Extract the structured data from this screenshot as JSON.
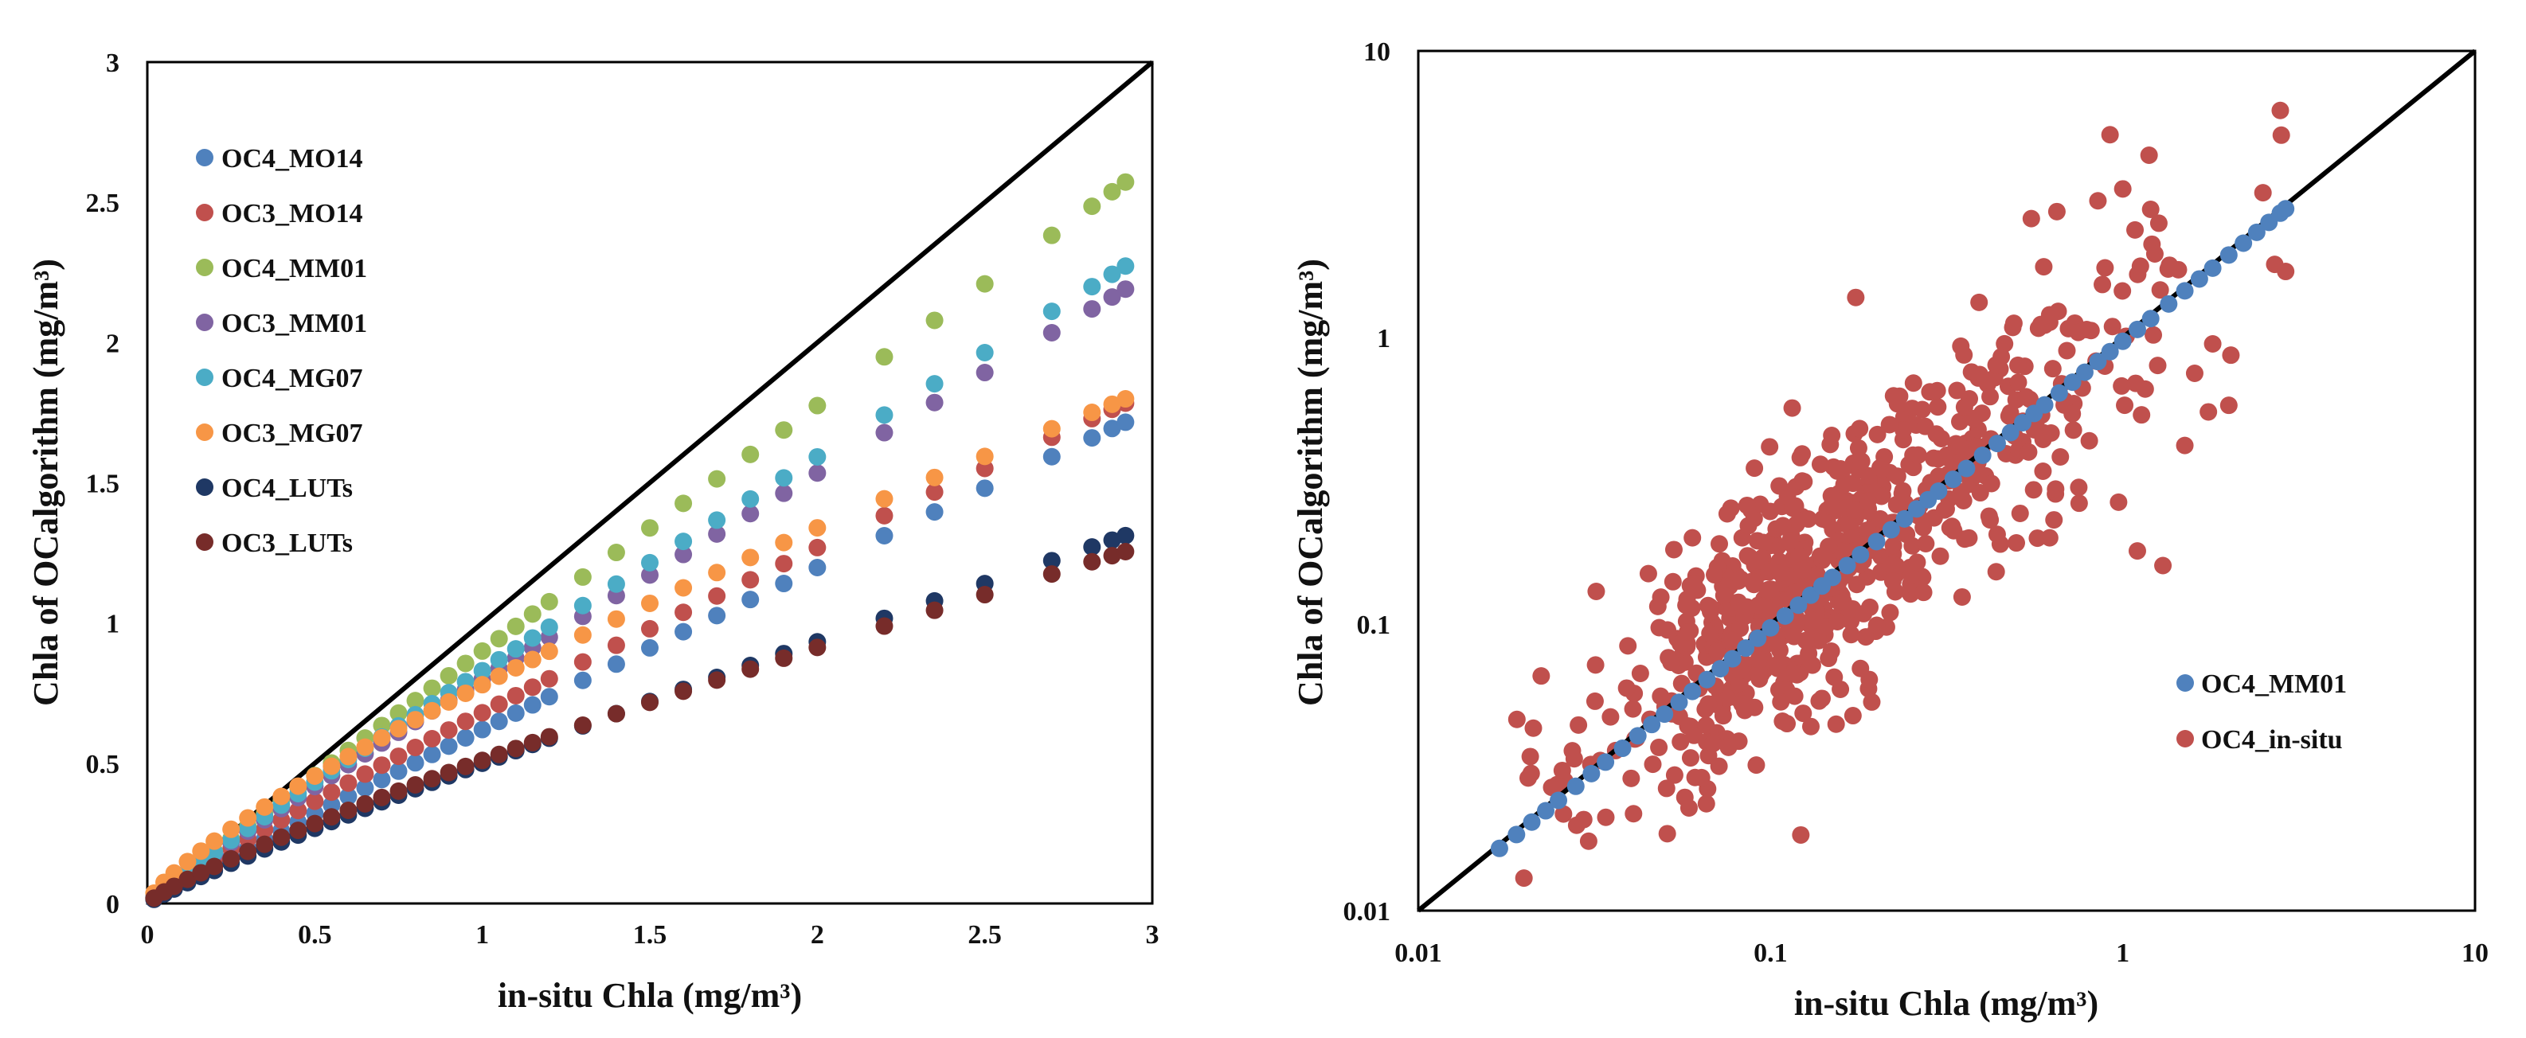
{
  "chart_data": [
    {
      "type": "scatter",
      "xlabel": "in-situ Chla  (mg/m³)",
      "ylabel": "Chla of OCalgorithm  (mg/m³)",
      "xlim": [
        0,
        3
      ],
      "ylim": [
        0,
        3
      ],
      "x_ticks": [
        "0",
        "0.5",
        "1",
        "1.5",
        "2",
        "2.5",
        "3"
      ],
      "y_ticks": [
        "0",
        "0.5",
        "1",
        "1.5",
        "2",
        "2.5",
        "3"
      ],
      "legend_position": "top-left",
      "grid": false,
      "reference_line": "1:1",
      "series": [
        {
          "name": "OC4_MO14",
          "color": "#4f81bd",
          "slope": 0.62,
          "power": 0.95,
          "x": [
            0.02,
            0.05,
            0.08,
            0.12,
            0.16,
            0.2,
            0.25,
            0.3,
            0.35,
            0.4,
            0.45,
            0.5,
            0.55,
            0.6,
            0.65,
            0.7,
            0.75,
            0.8,
            0.85,
            0.9,
            0.95,
            1.0,
            1.05,
            1.1,
            1.15,
            1.2,
            1.3,
            1.4,
            1.5,
            1.6,
            1.7,
            1.8,
            1.9,
            2.0,
            2.2,
            2.35,
            2.5,
            2.7,
            2.82,
            2.88,
            2.92
          ]
        },
        {
          "name": "OC3_MO14",
          "color": "#c0504d",
          "slope": 0.68,
          "power": 0.9,
          "x": [
            0.02,
            0.05,
            0.08,
            0.12,
            0.16,
            0.2,
            0.25,
            0.3,
            0.35,
            0.4,
            0.45,
            0.5,
            0.55,
            0.6,
            0.65,
            0.7,
            0.75,
            0.8,
            0.85,
            0.9,
            0.95,
            1.0,
            1.05,
            1.1,
            1.15,
            1.2,
            1.3,
            1.4,
            1.5,
            1.6,
            1.7,
            1.8,
            1.9,
            2.0,
            2.2,
            2.35,
            2.5,
            2.7,
            2.82,
            2.88,
            2.92
          ]
        },
        {
          "name": "OC4_MM01",
          "color": "#9bbb59",
          "slope": 0.9,
          "power": 0.98,
          "x": [
            0.02,
            0.05,
            0.08,
            0.12,
            0.16,
            0.2,
            0.25,
            0.3,
            0.35,
            0.4,
            0.45,
            0.5,
            0.55,
            0.6,
            0.65,
            0.7,
            0.75,
            0.8,
            0.85,
            0.9,
            0.95,
            1.0,
            1.05,
            1.1,
            1.15,
            1.2,
            1.3,
            1.4,
            1.5,
            1.6,
            1.7,
            1.8,
            1.9,
            2.0,
            2.2,
            2.35,
            2.5,
            2.7,
            2.82,
            2.88,
            2.92
          ]
        },
        {
          "name": "OC3_MM01",
          "color": "#8064a2",
          "slope": 0.8,
          "power": 0.94,
          "x": [
            0.02,
            0.05,
            0.08,
            0.12,
            0.16,
            0.2,
            0.25,
            0.3,
            0.35,
            0.4,
            0.45,
            0.5,
            0.55,
            0.6,
            0.65,
            0.7,
            0.75,
            0.8,
            0.85,
            0.9,
            0.95,
            1.0,
            1.05,
            1.1,
            1.15,
            1.2,
            1.3,
            1.4,
            1.5,
            1.6,
            1.7,
            1.8,
            1.9,
            2.0,
            2.2,
            2.35,
            2.5,
            2.7,
            2.82,
            2.88,
            2.92
          ]
        },
        {
          "name": "OC4_MG07",
          "color": "#4bacc6",
          "slope": 0.83,
          "power": 0.94,
          "x": [
            0.02,
            0.05,
            0.08,
            0.12,
            0.16,
            0.2,
            0.25,
            0.3,
            0.35,
            0.4,
            0.45,
            0.5,
            0.55,
            0.6,
            0.65,
            0.7,
            0.75,
            0.8,
            0.85,
            0.9,
            0.95,
            1.0,
            1.05,
            1.1,
            1.15,
            1.2,
            1.3,
            1.4,
            1.5,
            1.6,
            1.7,
            1.8,
            1.9,
            2.0,
            2.2,
            2.35,
            2.5,
            2.7,
            2.82,
            2.88,
            2.92
          ]
        },
        {
          "name": "OC3_MG07",
          "color": "#f79646",
          "slope": 0.78,
          "power": 0.78,
          "x": [
            0.02,
            0.05,
            0.08,
            0.12,
            0.16,
            0.2,
            0.25,
            0.3,
            0.35,
            0.4,
            0.45,
            0.5,
            0.55,
            0.6,
            0.65,
            0.7,
            0.75,
            0.8,
            0.85,
            0.9,
            0.95,
            1.0,
            1.05,
            1.1,
            1.15,
            1.2,
            1.3,
            1.4,
            1.5,
            1.6,
            1.7,
            1.8,
            1.9,
            2.0,
            2.2,
            2.35,
            2.5,
            2.7,
            2.82,
            2.88,
            2.92
          ]
        },
        {
          "name": "OC4_LUTs",
          "color": "#1f3864",
          "slope": 0.5,
          "power": 0.9,
          "x": [
            0.02,
            0.05,
            0.08,
            0.12,
            0.16,
            0.2,
            0.25,
            0.3,
            0.35,
            0.4,
            0.45,
            0.5,
            0.55,
            0.6,
            0.65,
            0.7,
            0.75,
            0.8,
            0.85,
            0.9,
            0.95,
            1.0,
            1.05,
            1.1,
            1.15,
            1.2,
            1.3,
            1.4,
            1.5,
            1.6,
            1.7,
            1.8,
            1.9,
            2.0,
            2.2,
            2.35,
            2.5,
            2.7,
            2.82,
            2.88,
            2.92
          ]
        },
        {
          "name": "OC3_LUTs",
          "color": "#772c2a",
          "slope": 0.51,
          "power": 0.84,
          "x": [
            0.02,
            0.05,
            0.08,
            0.12,
            0.16,
            0.2,
            0.25,
            0.3,
            0.35,
            0.4,
            0.45,
            0.5,
            0.55,
            0.6,
            0.65,
            0.7,
            0.75,
            0.8,
            0.85,
            0.9,
            0.95,
            1.0,
            1.05,
            1.1,
            1.15,
            1.2,
            1.3,
            1.4,
            1.5,
            1.6,
            1.7,
            1.8,
            1.9,
            2.0,
            2.2,
            2.35,
            2.5,
            2.7,
            2.82,
            2.88,
            2.92
          ]
        }
      ]
    },
    {
      "type": "scatter",
      "xlabel": "in-situ Chla  (mg/m³)",
      "ylabel": "Chla of OCalgorithm  (mg/m³)",
      "xlim": [
        0.01,
        10
      ],
      "ylim": [
        0.01,
        10
      ],
      "xscale": "log",
      "yscale": "log",
      "x_ticks": [
        "0.01",
        "0.1",
        "1",
        "10"
      ],
      "y_ticks": [
        "0.01",
        "0.1",
        "1",
        "10"
      ],
      "legend_position": "bottom-right",
      "grid": false,
      "reference_line": "1:1",
      "series": [
        {
          "name": "OC4_MM01",
          "color": "#4f81bd",
          "x": [
            0.017,
            0.019,
            0.021,
            0.023,
            0.025,
            0.028,
            0.031,
            0.034,
            0.038,
            0.042,
            0.046,
            0.05,
            0.055,
            0.06,
            0.066,
            0.072,
            0.078,
            0.085,
            0.092,
            0.1,
            0.11,
            0.12,
            0.13,
            0.14,
            0.15,
            0.165,
            0.18,
            0.2,
            0.22,
            0.24,
            0.26,
            0.28,
            0.3,
            0.33,
            0.36,
            0.4,
            0.44,
            0.48,
            0.52,
            0.56,
            0.6,
            0.66,
            0.72,
            0.78,
            0.85,
            0.92,
            1.0,
            1.1,
            1.2,
            1.35,
            1.5,
            1.65,
            1.8,
            2.0,
            2.2,
            2.4,
            2.6,
            2.8,
            2.9
          ]
        },
        {
          "name": "OC4_in-situ",
          "color": "#c0504d",
          "n": 650,
          "scatter_dex": 0.23,
          "outliers_x": [
            0.92,
            2.8,
            0.55,
            0.65,
            0.62,
            0.75,
            1.1,
            1.3,
            1.5,
            1.75,
            2.0,
            2.5,
            0.85,
            1.0,
            1.2,
            1.6,
            1.8,
            2.7,
            2.9,
            0.032,
            0.045,
            0.06,
            0.09,
            0.14,
            0.18
          ],
          "outliers_y": [
            5.1,
            6.2,
            2.6,
            2.75,
            0.2,
            0.3,
            0.18,
            0.16,
            0.42,
            0.55,
            0.58,
            3.2,
            3.0,
            3.3,
            2.8,
            0.75,
            0.95,
            1.8,
            1.7,
            0.13,
            0.15,
            0.2,
            0.35,
            0.055,
            0.07
          ]
        }
      ]
    }
  ]
}
